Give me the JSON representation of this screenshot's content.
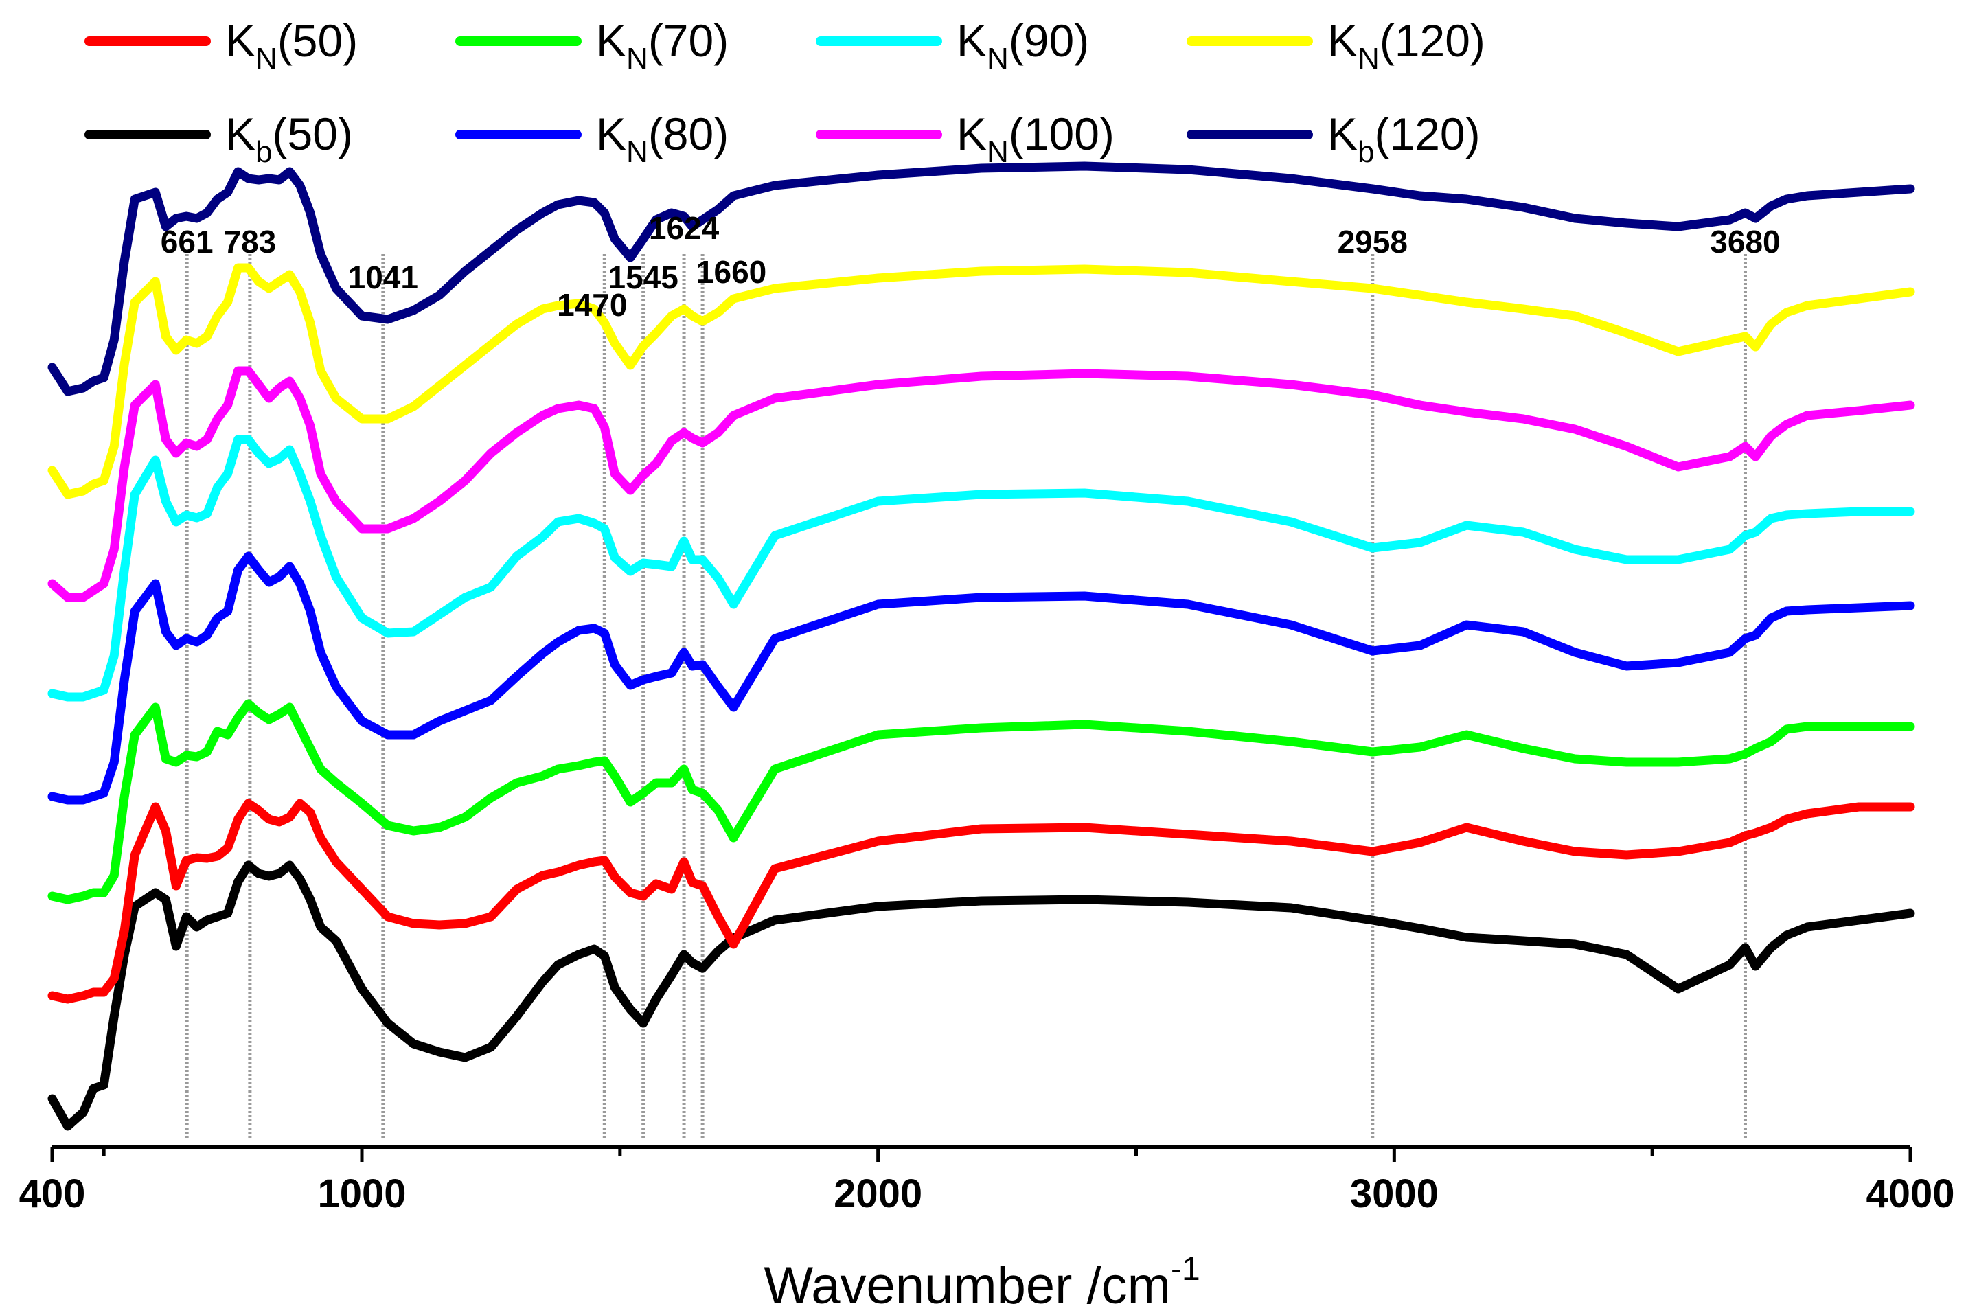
{
  "chart_data": {
    "type": "line",
    "title": "",
    "xlabel": "Wavenumber /cm",
    "xlabel_sup": "-1",
    "ylabel": "",
    "xlim": [
      400,
      4000
    ],
    "x_ticks": [
      400,
      1000,
      2000,
      3000,
      4000
    ],
    "x_ticks_labels": [
      "400",
      "1000",
      "2000",
      "3000",
      "4000"
    ],
    "y_axis_visible": false,
    "annotations": [
      {
        "text": "661",
        "x": 661
      },
      {
        "text": "783",
        "x": 783
      },
      {
        "text": "1041",
        "x": 1041
      },
      {
        "text": "1470",
        "x": 1470
      },
      {
        "text": "1545",
        "x": 1545
      },
      {
        "text": "1624",
        "x": 1624
      },
      {
        "text": "1660",
        "x": 1660
      },
      {
        "text": "2958",
        "x": 2958
      },
      {
        "text": "3680",
        "x": 3680
      }
    ],
    "legend": {
      "placement": "top",
      "entries": [
        {
          "main": "K",
          "sub": "N",
          "rest": "(50)",
          "color": "#ff0000"
        },
        {
          "main": "K",
          "sub": "N",
          "rest": "(70)",
          "color": "#00ff00"
        },
        {
          "main": "K",
          "sub": "N",
          "rest": "(90)",
          "color": "#00ffff"
        },
        {
          "main": "K",
          "sub": "N",
          "rest": "(120)",
          "color": "#ffff00"
        },
        {
          "main": "K",
          "sub": "b",
          "rest": "(50)",
          "color": "#000000"
        },
        {
          "main": "K",
          "sub": "N",
          "rest": "(80)",
          "color": "#0000ff"
        },
        {
          "main": "K",
          "sub": "N",
          "rest": "(100)",
          "color": "#ff00ff"
        },
        {
          "main": "K",
          "sub": "b",
          "rest": "(120)",
          "color": "#000080"
        }
      ]
    },
    "x": [
      400,
      430,
      460,
      480,
      500,
      520,
      540,
      560,
      600,
      620,
      640,
      660,
      680,
      700,
      720,
      740,
      760,
      780,
      800,
      820,
      840,
      860,
      880,
      900,
      920,
      950,
      1000,
      1050,
      1100,
      1150,
      1200,
      1250,
      1300,
      1350,
      1380,
      1420,
      1450,
      1470,
      1490,
      1520,
      1545,
      1570,
      1600,
      1624,
      1640,
      1660,
      1690,
      1720,
      1800,
      2000,
      2200,
      2400,
      2600,
      2800,
      2958,
      3050,
      3140,
      3250,
      3350,
      3450,
      3550,
      3650,
      3680,
      3700,
      3730,
      3760,
      3800,
      3900,
      4000
    ],
    "series": [
      {
        "name": "Kb(50)",
        "color": "#000000",
        "offset": 0,
        "y": [
          40,
          0,
          20,
          55,
          60,
          160,
          250,
          320,
          340,
          330,
          262,
          305,
          290,
          300,
          305,
          310,
          356,
          380,
          368,
          364,
          368,
          380,
          360,
          330,
          290,
          270,
          200,
          150,
          120,
          108,
          100,
          115,
          160,
          210,
          235,
          250,
          258,
          248,
          202,
          170,
          150,
          185,
          220,
          250,
          238,
          230,
          255,
          274,
          300,
          320,
          328,
          330,
          326,
          318,
          300,
          288,
          275,
          270,
          265,
          250,
          200,
          235,
          260,
          233,
          260,
          278,
          290,
          300,
          310
        ]
      },
      {
        "name": "KN(50)",
        "color": "#ff0000",
        "offset": 165,
        "y": [
          25,
          20,
          25,
          30,
          30,
          50,
          120,
          230,
          300,
          265,
          185,
          222,
          226,
          225,
          228,
          240,
          282,
          305,
          295,
          282,
          278,
          285,
          305,
          292,
          255,
          220,
          180,
          140,
          130,
          128,
          130,
          140,
          180,
          200,
          205,
          215,
          220,
          222,
          198,
          175,
          170,
          188,
          180,
          220,
          190,
          185,
          140,
          100,
          210,
          250,
          268,
          270,
          260,
          250,
          235,
          248,
          270,
          250,
          235,
          230,
          235,
          248,
          258,
          262,
          270,
          282,
          290,
          300,
          300
        ]
      },
      {
        "name": "KN(70)",
        "color": "#00ff00",
        "offset": 310,
        "y": [
          25,
          20,
          25,
          30,
          30,
          55,
          170,
          260,
          300,
          225,
          220,
          230,
          228,
          235,
          265,
          260,
          285,
          305,
          292,
          282,
          290,
          300,
          270,
          240,
          210,
          190,
          160,
          128,
          120,
          125,
          140,
          168,
          190,
          200,
          210,
          215,
          220,
          222,
          200,
          162,
          175,
          190,
          190,
          210,
          180,
          175,
          150,
          110,
          210,
          260,
          270,
          275,
          265,
          250,
          235,
          242,
          260,
          240,
          225,
          220,
          220,
          225,
          232,
          240,
          250,
          268,
          272,
          272,
          272
        ]
      },
      {
        "name": "KN(80)",
        "color": "#0000ff",
        "offset": 460,
        "y": [
          20,
          15,
          15,
          20,
          25,
          70,
          190,
          290,
          330,
          260,
          240,
          250,
          245,
          255,
          280,
          290,
          350,
          370,
          350,
          332,
          340,
          355,
          330,
          290,
          230,
          180,
          130,
          110,
          110,
          130,
          145,
          160,
          195,
          228,
          245,
          262,
          265,
          258,
          212,
          182,
          190,
          195,
          200,
          230,
          210,
          212,
          180,
          150,
          250,
          300,
          310,
          312,
          300,
          270,
          232,
          240,
          270,
          260,
          230,
          210,
          215,
          230,
          250,
          255,
          280,
          290,
          292,
          295,
          298
        ]
      },
      {
        "name": "KN(90)",
        "color": "#00ffff",
        "offset": 610,
        "y": [
          20,
          15,
          15,
          20,
          25,
          75,
          200,
          310,
          360,
          300,
          270,
          280,
          276,
          282,
          320,
          340,
          390,
          390,
          370,
          355,
          362,
          375,
          340,
          300,
          250,
          190,
          130,
          108,
          110,
          135,
          160,
          175,
          220,
          248,
          270,
          275,
          268,
          260,
          218,
          198,
          210,
          208,
          205,
          242,
          215,
          215,
          188,
          150,
          250,
          300,
          310,
          312,
          300,
          270,
          232,
          240,
          265,
          255,
          230,
          215,
          215,
          230,
          250,
          255,
          275,
          280,
          282,
          285,
          285
        ]
      },
      {
        "name": "KN(100)",
        "color": "#ff00ff",
        "offset": 760,
        "y": [
          30,
          10,
          10,
          20,
          30,
          80,
          200,
          290,
          320,
          240,
          220,
          235,
          230,
          240,
          270,
          290,
          340,
          340,
          320,
          300,
          315,
          325,
          300,
          260,
          190,
          150,
          110,
          110,
          125,
          150,
          180,
          220,
          250,
          275,
          285,
          290,
          285,
          258,
          190,
          166,
          188,
          205,
          238,
          250,
          242,
          235,
          250,
          275,
          300,
          320,
          332,
          336,
          332,
          320,
          305,
          290,
          280,
          270,
          255,
          230,
          200,
          215,
          230,
          215,
          245,
          262,
          275,
          282,
          290
        ]
      },
      {
        "name": "KN(120)",
        "color": "#ffff00",
        "offset": 910,
        "y": [
          45,
          10,
          15,
          25,
          30,
          80,
          200,
          290,
          320,
          240,
          220,
          235,
          230,
          240,
          270,
          290,
          340,
          340,
          320,
          310,
          320,
          330,
          305,
          260,
          190,
          150,
          120,
          120,
          138,
          168,
          198,
          228,
          258,
          280,
          285,
          288,
          280,
          260,
          230,
          198,
          226,
          245,
          270,
          280,
          270,
          262,
          275,
          295,
          310,
          325,
          335,
          338,
          333,
          320,
          310,
          300,
          290,
          280,
          270,
          245,
          218,
          235,
          240,
          225,
          258,
          275,
          285,
          295,
          305
        ]
      },
      {
        "name": "Kb(120)",
        "color": "#000080",
        "offset": 1060,
        "y": [
          45,
          10,
          15,
          25,
          30,
          85,
          200,
          290,
          300,
          250,
          262,
          265,
          262,
          270,
          290,
          300,
          330,
          320,
          318,
          320,
          318,
          330,
          310,
          270,
          210,
          160,
          120,
          115,
          128,
          150,
          185,
          215,
          245,
          270,
          282,
          288,
          285,
          270,
          232,
          205,
          232,
          260,
          270,
          265,
          250,
          260,
          275,
          295,
          310,
          325,
          335,
          338,
          333,
          320,
          305,
          295,
          290,
          278,
          262,
          255,
          250,
          260,
          270,
          262,
          280,
          290,
          295,
          300,
          305
        ]
      }
    ]
  }
}
